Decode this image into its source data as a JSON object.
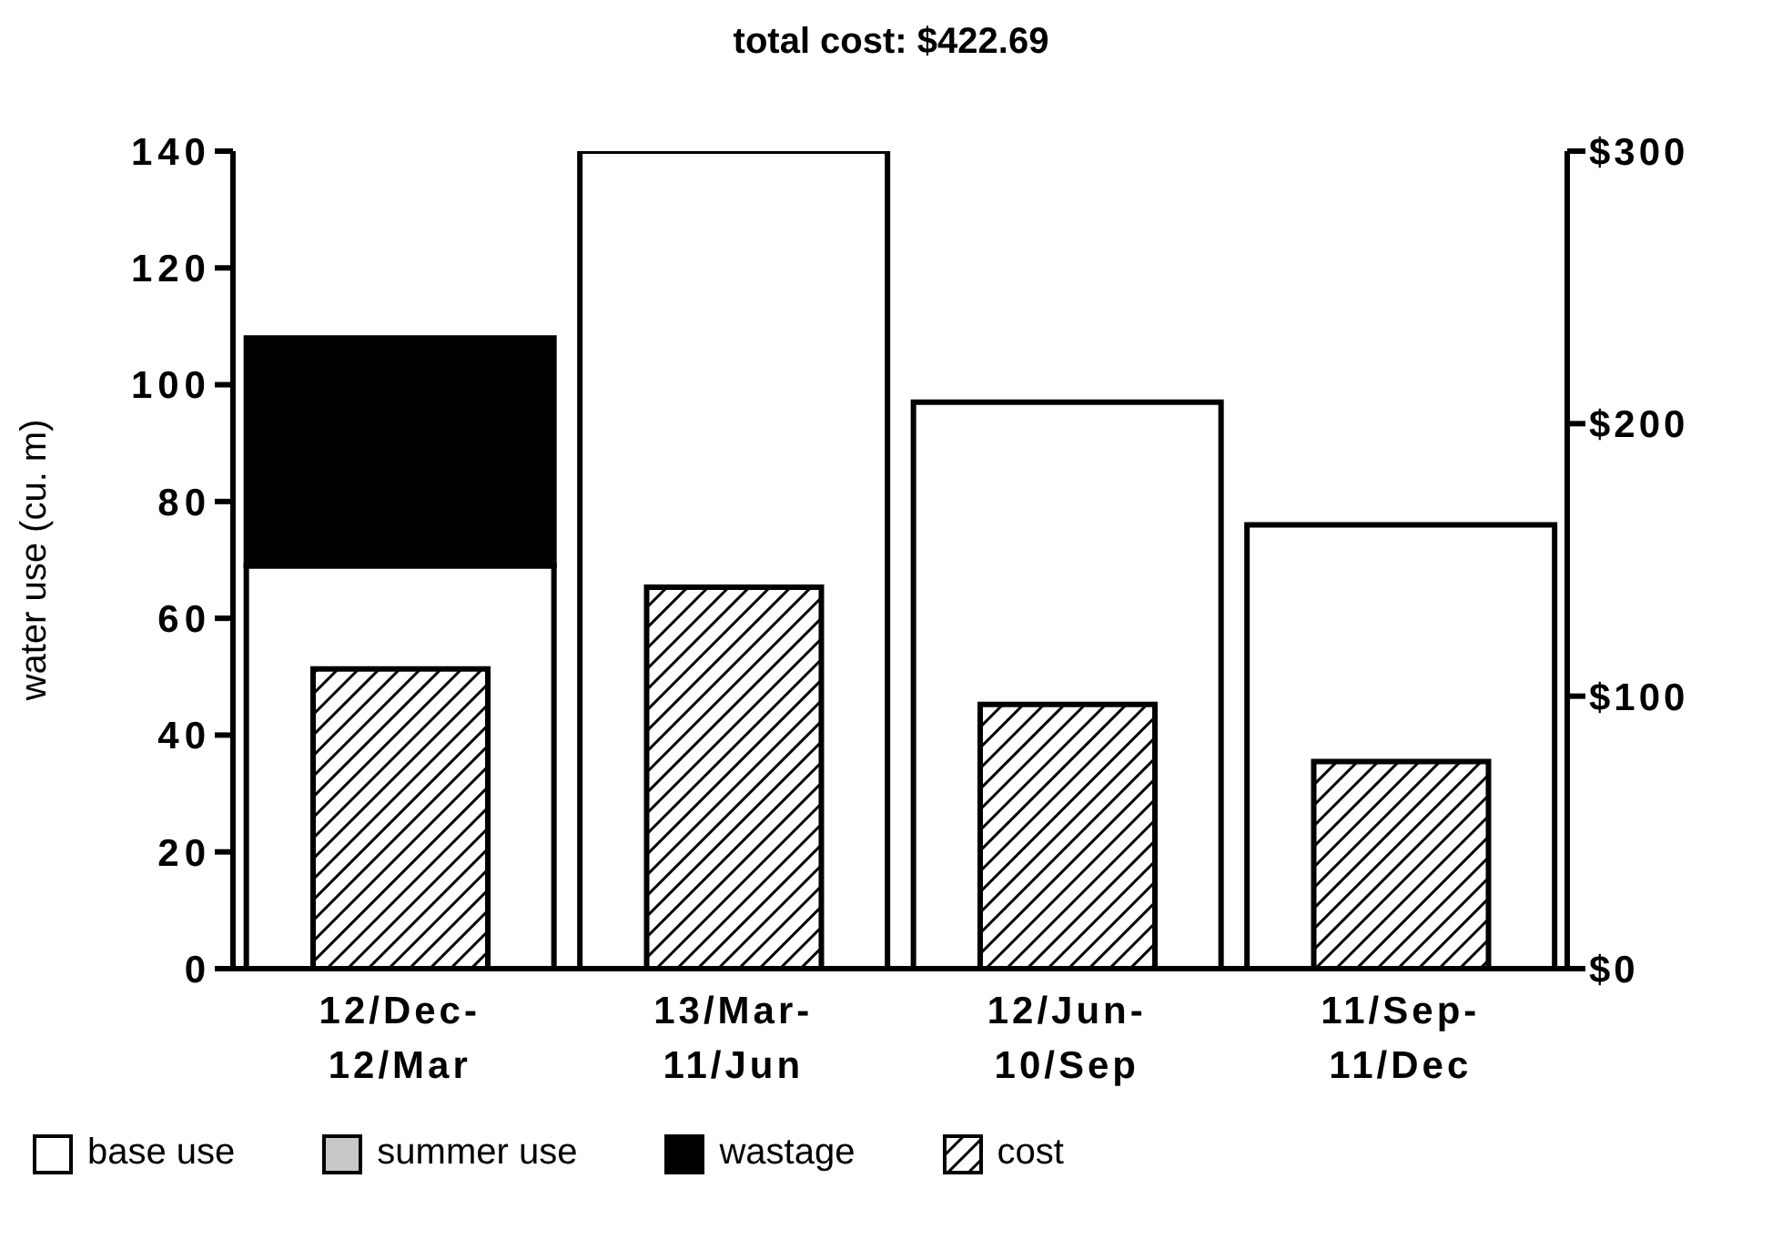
{
  "chart_data": {
    "type": "bar",
    "title": "total cost:  $422.69",
    "ylabel": "water use (cu. m)",
    "categories": [
      "12/Dec-\n12/Mar",
      "13/Mar-\n11/Jun",
      "12/Jun-\n10/Sep",
      "11/Sep-\n11/Dec"
    ],
    "stacked": true,
    "series": [
      {
        "name": "base use",
        "color": "#ffffff",
        "values": [
          69,
          140,
          97,
          76
        ]
      },
      {
        "name": "summer use",
        "color": "#c8c8c8",
        "values": [
          0,
          0,
          0,
          0
        ]
      },
      {
        "name": "wastage",
        "color": "#000000",
        "values": [
          39,
          0,
          0,
          0
        ]
      },
      {
        "name": "cost",
        "color": "#000000",
        "axis": "y2",
        "values": [
          110,
          140,
          97,
          76
        ]
      }
    ],
    "ylim": [
      0,
      140
    ],
    "yticks": [
      0,
      20,
      40,
      60,
      80,
      100,
      120,
      140
    ],
    "y2lim": [
      0,
      300
    ],
    "y2ticks": [
      {
        "value": 0,
        "label": "$0"
      },
      {
        "value": 100,
        "label": "$100"
      },
      {
        "value": 200,
        "label": "$200"
      },
      {
        "value": 300,
        "label": "$300"
      }
    ],
    "grid": false,
    "legend": "bottom"
  }
}
